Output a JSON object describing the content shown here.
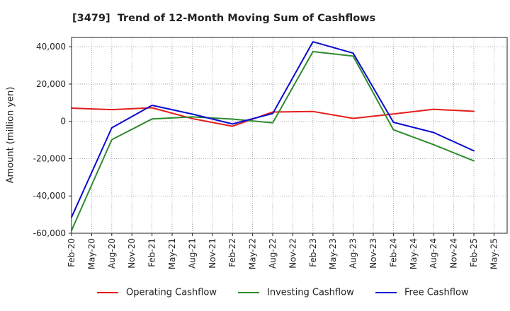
{
  "chart_data": {
    "type": "line",
    "title": "[3479]  Trend of 12-Month Moving Sum of Cashflows",
    "ylabel": "Amount (million yen)",
    "ylim": [
      -60000,
      45000
    ],
    "y_ticks": [
      {
        "value": 40000,
        "label": "40,000"
      },
      {
        "value": 20000,
        "label": "20,000"
      },
      {
        "value": 0,
        "label": "0"
      },
      {
        "value": -20000,
        "label": "-20,000"
      },
      {
        "value": -40000,
        "label": "-40,000"
      },
      {
        "value": -60000,
        "label": "-60,000"
      }
    ],
    "x_tick_labels": [
      "Feb-20",
      "May-20",
      "Aug-20",
      "Nov-20",
      "Feb-21",
      "May-21",
      "Aug-21",
      "Nov-21",
      "Feb-22",
      "May-22",
      "Aug-22",
      "Nov-22",
      "Feb-23",
      "May-23",
      "Aug-23",
      "Nov-23",
      "Feb-24",
      "May-24",
      "Aug-24",
      "Nov-24",
      "Feb-25",
      "May-25"
    ],
    "grid": true,
    "legend_position": "bottom",
    "x": [
      "Feb-20",
      "Aug-20",
      "Feb-21",
      "Aug-21",
      "Feb-22",
      "Aug-22",
      "Feb-23",
      "Aug-23",
      "Feb-24",
      "Aug-24",
      "Feb-25"
    ],
    "series": [
      {
        "name": "Operating Cashflow",
        "color": "#e41c1c",
        "values": [
          7100,
          6300,
          7300,
          1500,
          -2600,
          5000,
          5300,
          1600,
          4000,
          6500,
          5400
        ]
      },
      {
        "name": "Investing Cashflow",
        "color": "#2e8b2e",
        "values": [
          -58500,
          -9800,
          1300,
          2400,
          1200,
          -800,
          37400,
          35000,
          -4500,
          -12500,
          -21200
        ]
      },
      {
        "name": "Free Cashflow",
        "color": "#0a0ad0",
        "values": [
          -51400,
          -3500,
          8600,
          3900,
          -1400,
          4200,
          42700,
          36600,
          -500,
          -6000,
          -15800
        ]
      }
    ]
  }
}
